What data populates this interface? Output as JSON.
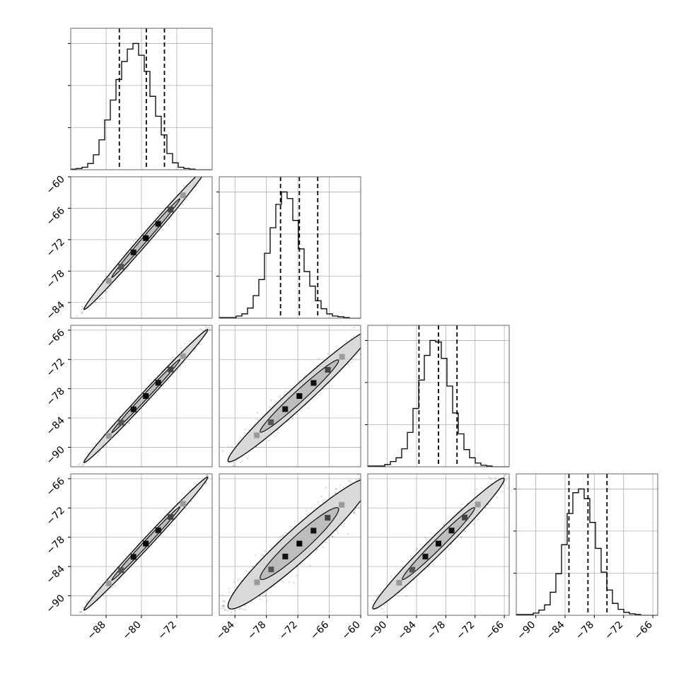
{
  "chart_data": {
    "type": "corner",
    "grid": true,
    "colors": {
      "line": "#000000",
      "grid": "#b0b0b0",
      "points": "#555555",
      "contour_fill": "#d9d9d9"
    },
    "variables": [
      {
        "range": [
          -96,
          -64
        ],
        "ticks": [
          -88,
          -80,
          -72
        ],
        "tick_labels": [
          "−88",
          "−80",
          "−72"
        ],
        "quantiles": [
          -85,
          -78.9,
          -74.8
        ]
      },
      {
        "range": [
          -87,
          -60
        ],
        "ticks": [
          -84,
          -78,
          -72,
          -66,
          -60
        ],
        "tick_labels": [
          "−84",
          "−78",
          "−72",
          "−66",
          "−60"
        ],
        "quantiles": [
          -75.3,
          -71.7,
          -68.2
        ]
      },
      {
        "range": [
          -94,
          -65
        ],
        "ticks": [
          -90,
          -84,
          -78,
          -72,
          -66
        ],
        "tick_labels": [
          "−90",
          "−84",
          "−78",
          "−72",
          "−66"
        ],
        "quantiles": [
          -83.5,
          -79.5,
          -75.7
        ]
      },
      {
        "range": [
          -94,
          -65
        ],
        "ticks": [
          -90,
          -84,
          -78,
          -72,
          -66
        ],
        "tick_labels": [
          "−90",
          "−84",
          "−78",
          "−72",
          "−66"
        ],
        "quantiles": [
          -83.2,
          -79.3,
          -75.4
        ]
      }
    ],
    "histograms": [
      {
        "bins": 25,
        "counts": [
          1,
          2,
          4,
          10,
          24,
          48,
          80,
          112,
          145,
          174,
          194,
          203,
          184,
          158,
          118,
          86,
          56,
          26,
          11,
          4,
          2,
          1,
          0,
          0,
          0
        ]
      },
      {
        "bins": 25,
        "counts": [
          1,
          1,
          1,
          3,
          6,
          14,
          31,
          53,
          89,
          124,
          156,
          173,
          164,
          134,
          95,
          64,
          44,
          24,
          13,
          6,
          3,
          2,
          1,
          0,
          0
        ]
      },
      {
        "bins": 25,
        "counts": [
          1,
          1,
          1,
          3,
          7,
          12,
          24,
          46,
          78,
          116,
          149,
          169,
          167,
          145,
          108,
          72,
          44,
          23,
          12,
          5,
          2,
          1,
          0,
          0,
          0
        ]
      },
      {
        "bins": 25,
        "counts": [
          1,
          1,
          1,
          3,
          7,
          14,
          31,
          56,
          95,
          137,
          165,
          170,
          157,
          125,
          90,
          58,
          34,
          16,
          8,
          4,
          2,
          1,
          0,
          0,
          0
        ]
      }
    ],
    "pairs": [
      {
        "x": 0,
        "y": 1,
        "center": [
          -79,
          -71.7
        ],
        "cov": [
          [
            49,
            47.5
          ],
          [
            47.5,
            46.5
          ]
        ],
        "n": 700,
        "seed": 11
      },
      {
        "x": 0,
        "y": 2,
        "center": [
          -79,
          -79.5
        ],
        "cov": [
          [
            49,
            47.5
          ],
          [
            47.5,
            46.5
          ]
        ],
        "n": 600,
        "seed": 23
      },
      {
        "x": 1,
        "y": 2,
        "center": [
          -71.7,
          -79.5
        ],
        "cov": [
          [
            46.5,
            45.0
          ],
          [
            45.0,
            45.5
          ]
        ],
        "n": 650,
        "seed": 37
      },
      {
        "x": 0,
        "y": 3,
        "center": [
          -79,
          -79.3
        ],
        "cov": [
          [
            49,
            47.5
          ],
          [
            47.5,
            46.5
          ]
        ],
        "n": 600,
        "seed": 41
      },
      {
        "x": 1,
        "y": 3,
        "center": [
          -71.7,
          -79.3
        ],
        "cov": [
          [
            46.5,
            43.5
          ],
          [
            43.5,
            45.0
          ]
        ],
        "n": 1300,
        "seed": 53
      },
      {
        "x": 2,
        "y": 3,
        "center": [
          -79.5,
          -79.3
        ],
        "cov": [
          [
            45.5,
            44.5
          ],
          [
            44.5,
            45.0
          ]
        ],
        "n": 600,
        "seed": 67
      }
    ]
  }
}
